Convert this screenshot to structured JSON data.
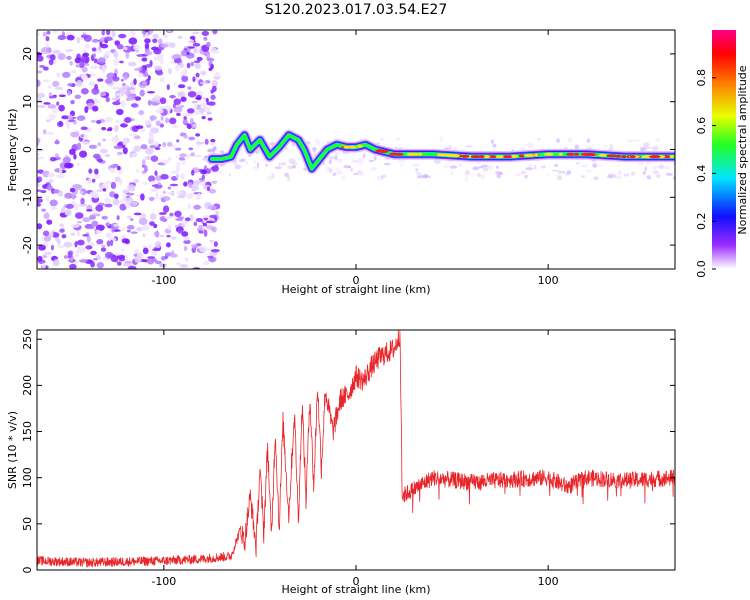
{
  "title": "S120.2023.017.03.54.E27",
  "colors": {
    "snr_line": "#e8262a",
    "axes": "#000000",
    "speckle": "#8b00ff"
  },
  "chart_data": [
    {
      "id": "spectrogram",
      "type": "heatmap",
      "xlabel": "Height of straight line (km)",
      "ylabel": "Frequency (Hz)",
      "xlim": [
        -166,
        166
      ],
      "ylim": [
        -25,
        25
      ],
      "xticks": [
        -100,
        0,
        100
      ],
      "yticks": [
        -20,
        -10,
        0,
        10,
        20
      ],
      "grid": false,
      "noise_region_x": [
        -166,
        -72
      ],
      "signal_track": {
        "x": [
          -75,
          -70,
          -65,
          -62,
          -58,
          -55,
          -50,
          -45,
          -40,
          -35,
          -30,
          -27,
          -23,
          -20,
          -15,
          -10,
          -5,
          0,
          5,
          10,
          15,
          20,
          40,
          60,
          80,
          100,
          120,
          140,
          166
        ],
        "y": [
          -2,
          -2,
          -1.5,
          1,
          3,
          0,
          2,
          -1.5,
          0.5,
          3,
          2,
          0,
          -4,
          -2.5,
          0,
          1,
          0.5,
          0.5,
          1,
          0,
          -0.5,
          -1,
          -1,
          -1.5,
          -1.5,
          -1,
          -1,
          -1.5,
          -1.5
        ]
      },
      "colorbar": {
        "label": "Normalized spectral amplitude",
        "range": [
          0.0,
          1.0
        ],
        "ticks": [
          0.0,
          0.2,
          0.4,
          0.6,
          0.8
        ],
        "tick_labels": [
          "0.0",
          "0.2",
          "0.4",
          "0.6",
          "0.8"
        ],
        "colormap": "rainbow (white-violet-blue-cyan-green-yellow-red-magenta)"
      }
    },
    {
      "id": "snr",
      "type": "line",
      "xlabel": "Height of straight line (km)",
      "ylabel": "SNR (10 * v/v)",
      "xlim": [
        -166,
        166
      ],
      "ylim": [
        0,
        260
      ],
      "xticks": [
        -100,
        0,
        100
      ],
      "yticks": [
        0,
        50,
        100,
        150,
        200,
        250
      ],
      "grid": false,
      "series": [
        {
          "x": [
            -166,
            -140,
            -100,
            -80,
            -65,
            -60,
            -58,
            -55,
            -52,
            -50,
            -48,
            -46,
            -44,
            -42,
            -40,
            -38,
            -35,
            -32,
            -30,
            -28,
            -26,
            -24,
            -22,
            -20,
            -18,
            -16,
            -12,
            -8,
            -4,
            0,
            4,
            8,
            12,
            16,
            20,
            22,
            23,
            24,
            40,
            60,
            80,
            100,
            110,
            120,
            140,
            166
          ],
          "y": [
            10,
            8,
            10,
            12,
            15,
            45,
            30,
            80,
            25,
            110,
            40,
            135,
            35,
            150,
            45,
            160,
            60,
            170,
            55,
            180,
            75,
            190,
            90,
            200,
            110,
            195,
            150,
            185,
            190,
            210,
            205,
            220,
            230,
            235,
            240,
            250,
            255,
            80,
            100,
            95,
            98,
            100,
            90,
            100,
            97,
            100
          ]
        }
      ]
    }
  ]
}
